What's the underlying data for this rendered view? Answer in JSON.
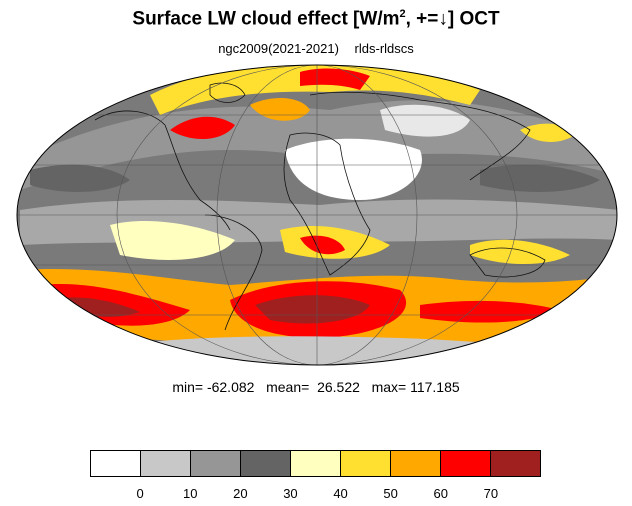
{
  "title": {
    "main": "Surface LW cloud effect [W/m",
    "sup": "2",
    "rest": ", +=↓]  OCT"
  },
  "subtitle": {
    "left": "ngc2009(2021-2021)",
    "right": "rlds-rldscs"
  },
  "stats": "min= -62.082   mean=  26.522   max= 117.185",
  "colorbar": {
    "colors": [
      "#ffffff",
      "#c8c8c8",
      "#969696",
      "#646464",
      "#ffffc0",
      "#ffe030",
      "#ffa800",
      "#ff0000",
      "#a02020"
    ],
    "tick_labels": [
      "0",
      "10",
      "20",
      "30",
      "40",
      "50",
      "60",
      "70"
    ]
  },
  "map": {
    "projection": "Mollweide",
    "ocean_gray": "#7a7a7a",
    "land_light": "#dcdcdc"
  }
}
